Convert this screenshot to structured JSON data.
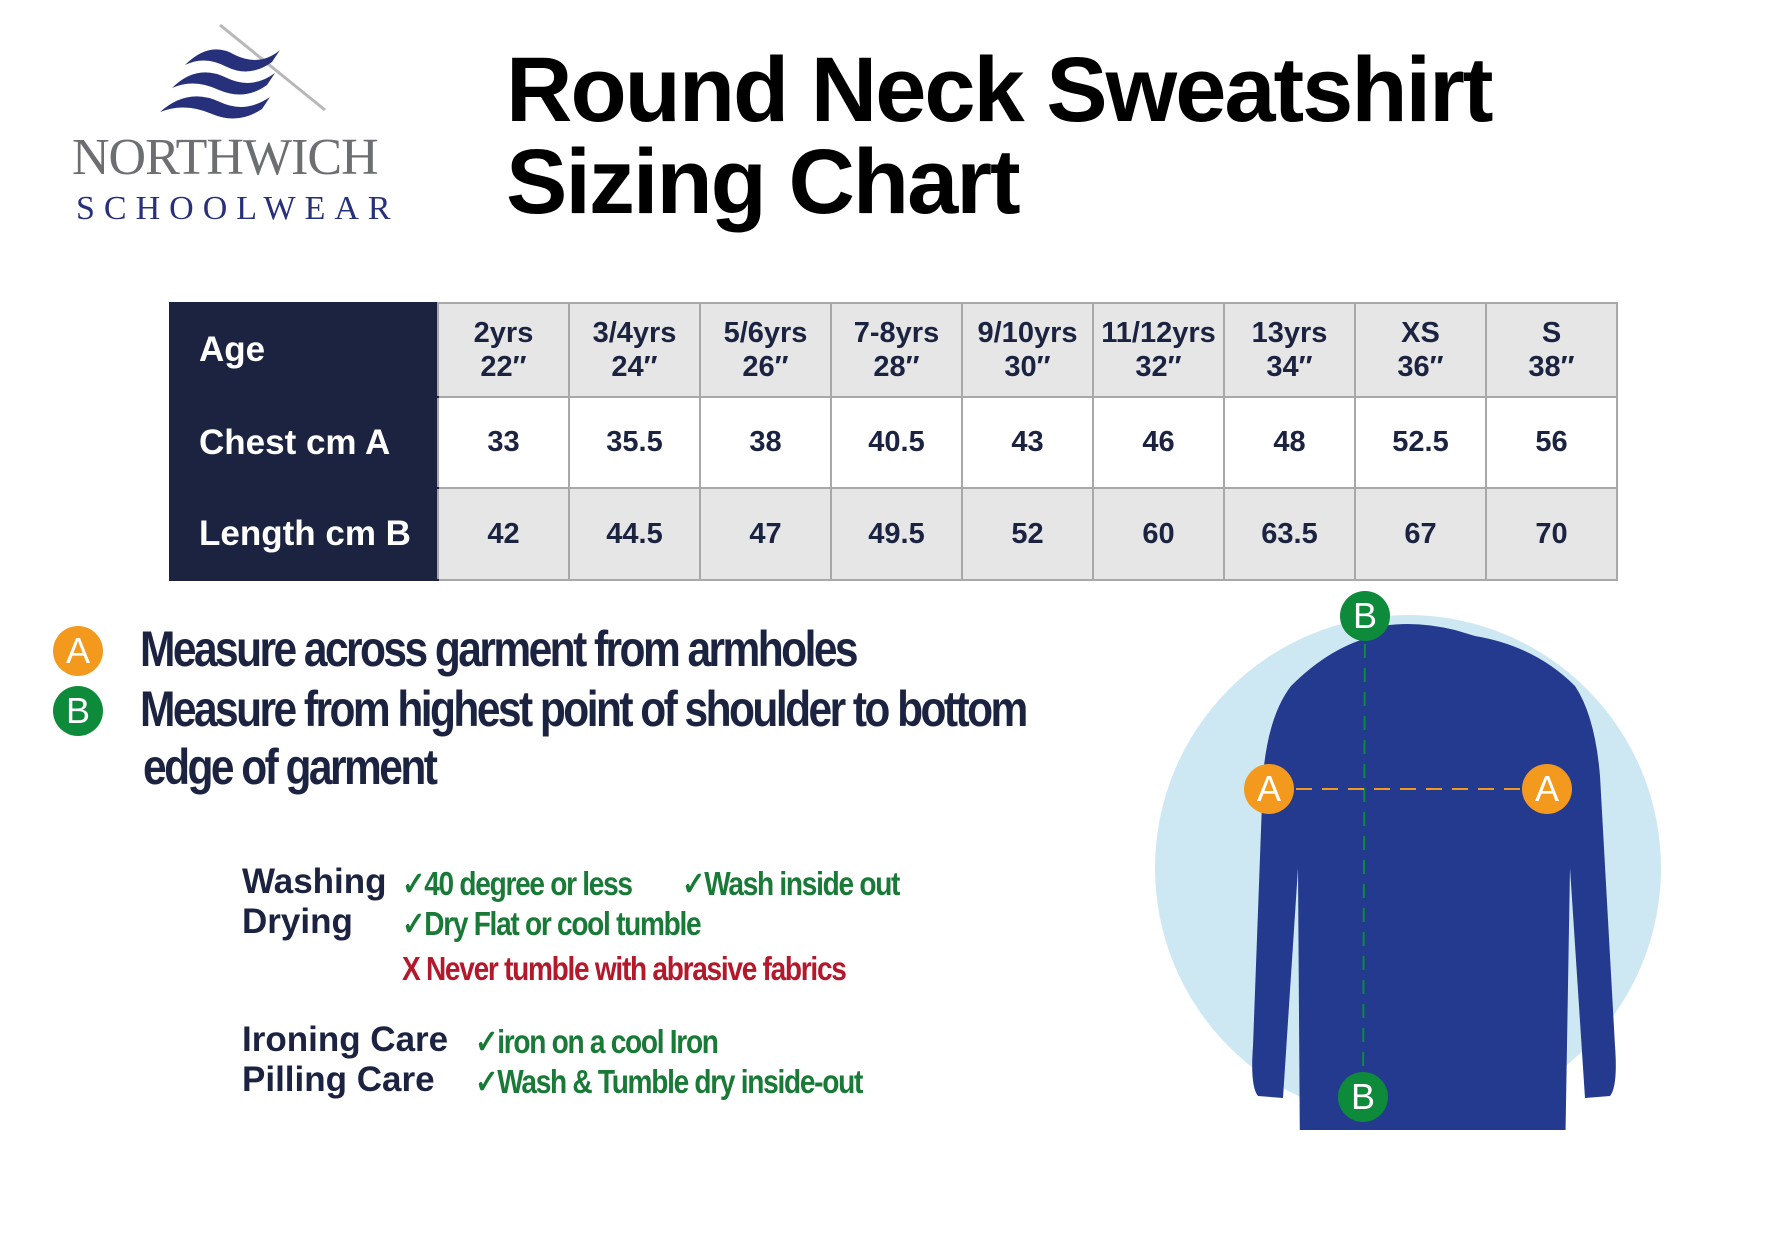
{
  "brand": {
    "line1": "NORTHWICH",
    "line2": "SCHOOLWEAR"
  },
  "title": {
    "line1": "Round Neck Sweatshirt",
    "line2": "Sizing Chart"
  },
  "table": {
    "row_headers": [
      "Age",
      "Chest cm A",
      "Length cm B"
    ],
    "columns": [
      {
        "age": "2yrs",
        "inch": "22″"
      },
      {
        "age": "3/4yrs",
        "inch": "24″"
      },
      {
        "age": "5/6yrs",
        "inch": "26″"
      },
      {
        "age": "7-8yrs",
        "inch": "28″"
      },
      {
        "age": "9/10yrs",
        "inch": "30″"
      },
      {
        "age": "11/12yrs",
        "inch": "32″"
      },
      {
        "age": "13yrs",
        "inch": "34″"
      },
      {
        "age": "XS",
        "inch": "36″"
      },
      {
        "age": "S",
        "inch": "38″"
      }
    ],
    "chest": [
      "33",
      "35.5",
      "38",
      "40.5",
      "43",
      "46",
      "48",
      "52.5",
      "56"
    ],
    "length": [
      "42",
      "44.5",
      "47",
      "49.5",
      "52",
      "60",
      "63.5",
      "67",
      "70"
    ]
  },
  "measure": {
    "a_label": "A",
    "a_text": "Measure across garment  from armholes",
    "b_label": "B",
    "b_text1": "Measure from highest point of shoulder to bottom",
    "b_text2": "edge of garment"
  },
  "care": {
    "washing": "Washing",
    "wash1": "✓40 degree or less",
    "wash2": "✓Wash inside out",
    "drying": "Drying",
    "dry1": "✓Dry Flat or cool tumble",
    "dry2": "X Never tumble with abrasive fabrics",
    "ironing": "Ironing Care",
    "iron1": "✓iron on a cool Iron",
    "pilling": "Pilling Care",
    "pill1": "✓Wash & Tumble dry inside-out"
  },
  "colors": {
    "navy": "#1b2340",
    "orange": "#f39a1e",
    "green": "#0d8a3a",
    "red": "#b3192b",
    "garment": "#233a8f",
    "circle": "#cde8f3"
  }
}
